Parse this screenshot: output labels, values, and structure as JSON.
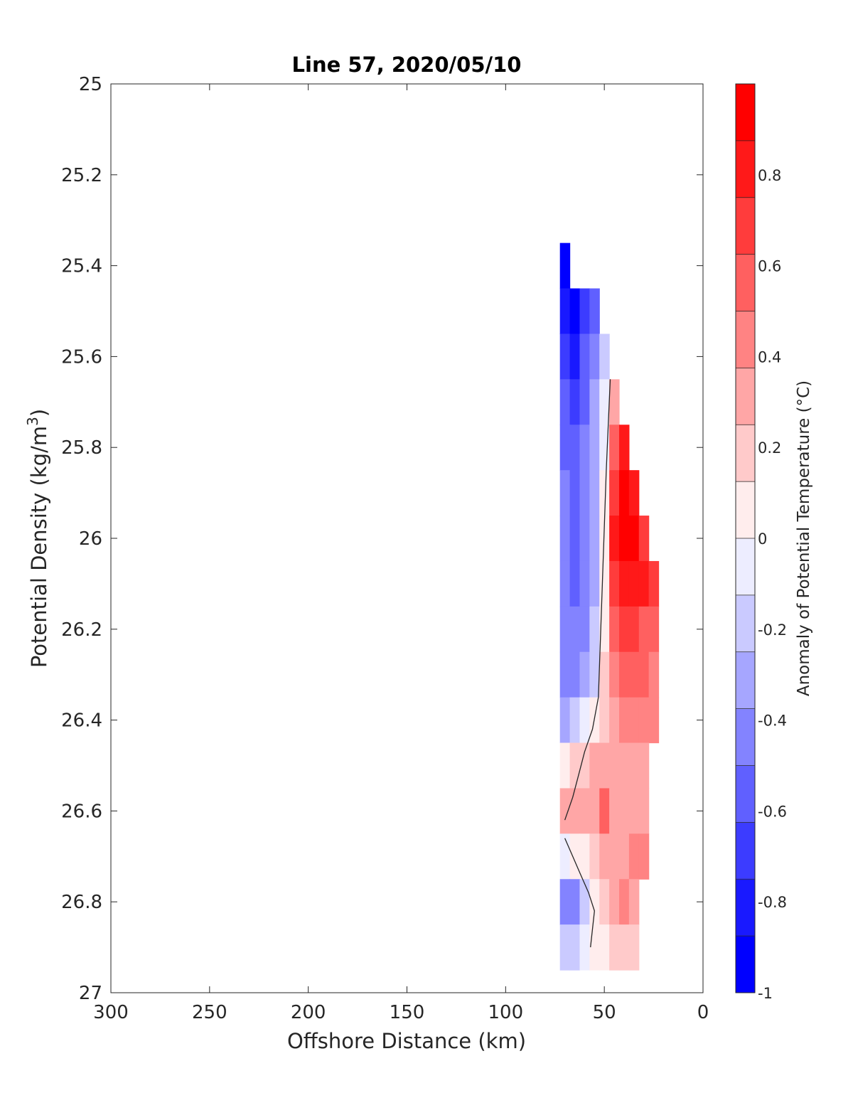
{
  "chart_data": {
    "type": "heatmap",
    "title": "Line 57, 2020/05/10",
    "xlabel": "Offshore Distance (km)",
    "ylabel_main": "Potential Density (kg/m",
    "ylabel_sup": "3",
    "ylabel_end": ")",
    "xlim": [
      300,
      0
    ],
    "ylim": [
      27,
      25
    ],
    "x_ticks": [
      "300",
      "250",
      "200",
      "150",
      "100",
      "50",
      "0"
    ],
    "y_ticks": [
      "25",
      "25.2",
      "25.4",
      "25.6",
      "25.8",
      "26",
      "26.2",
      "26.4",
      "26.6",
      "26.8",
      "27"
    ],
    "colorbar": {
      "label": "Anomaly of Potential Temperature (°C)",
      "range": [
        -1,
        1
      ],
      "levels": 16,
      "ticks": [
        "0.8",
        "0.6",
        "0.4",
        "0.2",
        "0",
        "-0.2",
        "-0.4",
        "-0.6",
        "-0.8",
        "-1"
      ]
    },
    "distances_km": [
      70,
      65,
      60,
      55,
      50,
      45,
      40,
      35,
      30,
      25
    ],
    "densities": [
      25.4,
      25.5,
      25.6,
      25.7,
      25.8,
      25.9,
      26.0,
      26.1,
      26.2,
      26.3,
      26.4,
      26.5,
      26.6,
      26.7,
      26.8,
      26.9
    ],
    "anomaly": [
      [
        -0.9,
        null,
        null,
        null,
        null,
        null,
        null,
        null,
        null,
        null
      ],
      [
        -0.85,
        -0.9,
        -0.75,
        -0.55,
        null,
        null,
        null,
        null,
        null,
        null
      ],
      [
        -0.7,
        -0.8,
        -0.6,
        -0.4,
        -0.15,
        null,
        null,
        null,
        null,
        null
      ],
      [
        -0.6,
        -0.7,
        -0.55,
        -0.35,
        -0.1,
        0.3,
        null,
        null,
        null,
        null
      ],
      [
        -0.55,
        -0.6,
        -0.45,
        -0.3,
        -0.05,
        0.55,
        0.8,
        null,
        null,
        null
      ],
      [
        -0.5,
        -0.55,
        -0.45,
        -0.3,
        0.0,
        0.7,
        0.9,
        0.85,
        null,
        null
      ],
      [
        -0.5,
        -0.55,
        -0.45,
        -0.3,
        0.05,
        0.75,
        0.95,
        0.9,
        0.7,
        null
      ],
      [
        -0.5,
        -0.55,
        -0.45,
        -0.3,
        0.05,
        0.65,
        0.85,
        0.8,
        0.75,
        0.65
      ],
      [
        -0.5,
        -0.5,
        -0.4,
        -0.25,
        0.1,
        0.5,
        0.65,
        0.7,
        0.6,
        0.5
      ],
      [
        -0.45,
        -0.45,
        -0.35,
        -0.2,
        0.15,
        0.4,
        0.5,
        0.55,
        0.5,
        0.45
      ],
      [
        -0.3,
        -0.2,
        -0.1,
        0.0,
        0.2,
        0.3,
        0.4,
        0.45,
        0.42,
        0.4
      ],
      [
        0.1,
        0.15,
        0.2,
        0.25,
        0.3,
        0.32,
        0.35,
        0.35,
        0.3,
        null
      ],
      [
        0.25,
        0.28,
        0.3,
        0.35,
        0.5,
        0.35,
        0.32,
        0.35,
        0.32,
        null
      ],
      [
        -0.1,
        0.0,
        0.1,
        0.2,
        0.25,
        0.28,
        0.35,
        0.4,
        0.38,
        null
      ],
      [
        -0.5,
        -0.4,
        -0.2,
        0.05,
        0.15,
        0.3,
        0.45,
        0.3,
        null,
        null
      ],
      [
        -0.2,
        -0.15,
        -0.05,
        0.05,
        0.1,
        0.15,
        0.2,
        0.15,
        null,
        null
      ]
    ],
    "zero_contour": [
      [
        [
          47,
          25.65
        ],
        [
          49,
          25.85
        ],
        [
          51,
          26.1
        ],
        [
          53,
          26.35
        ],
        [
          56,
          26.42
        ],
        [
          60,
          26.47
        ],
        [
          63,
          26.52
        ],
        [
          66,
          26.57
        ],
        [
          70,
          26.62
        ]
      ],
      [
        [
          70,
          26.66
        ],
        [
          66,
          26.7
        ],
        [
          62,
          26.74
        ],
        [
          58,
          26.78
        ],
        [
          55,
          26.82
        ],
        [
          57,
          26.9
        ]
      ]
    ]
  }
}
